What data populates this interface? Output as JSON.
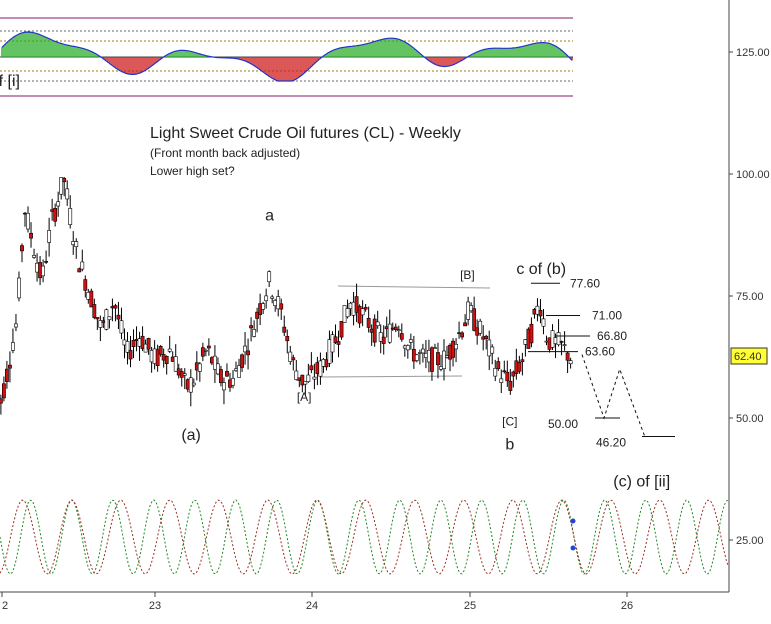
{
  "chart_data": {
    "type": "candlestick",
    "title": "Light Sweet Crude Oil futures (CL) - Weekly",
    "subtitle": "(Front month back adjusted)",
    "note": "Lower high set?",
    "x_ticks": [
      "2",
      "23",
      "24",
      "25",
      "26"
    ],
    "y_ticks": [
      125.0,
      100.0,
      75.0,
      50.0,
      25.0
    ],
    "y_tick_labels": [
      "125.00",
      "100.00",
      "75.00",
      "50.00",
      "25.00"
    ],
    "ylim": [
      17,
      138
    ],
    "last_price": "62.40",
    "wave_labels": [
      {
        "text": "(v) of [i]",
        "t": 21.97,
        "v": 118
      },
      {
        "text": "a",
        "t": 23.73,
        "v": 90.5
      },
      {
        "text": "(a)",
        "t": 23.23,
        "v": 45.5
      },
      {
        "text": "[A]",
        "t": 23.95,
        "v": 53.5
      },
      {
        "text": "[B]",
        "t": 24.99,
        "v": 78.5
      },
      {
        "text": "c of (b)",
        "t": 25.46,
        "v": 79.5
      },
      {
        "text": "[C]",
        "t": 25.26,
        "v": 48.5
      },
      {
        "text": "b",
        "t": 25.26,
        "v": 43.5
      },
      {
        "text": "(c) of [ii]",
        "t": 26.1,
        "v": 36.0
      }
    ],
    "targets": [
      {
        "label": "77.60",
        "v": 77.6
      },
      {
        "label": "71.00",
        "v": 71.0
      },
      {
        "label": "66.80",
        "v": 66.8
      },
      {
        "label": "63.60",
        "v": 63.6
      },
      {
        "label": "50.00",
        "v": 50.0
      },
      {
        "label": "46.20",
        "v": 46.2
      }
    ],
    "projection_path": [
      {
        "t": 25.72,
        "v": 63.0
      },
      {
        "t": 25.86,
        "v": 50.0
      },
      {
        "t": 25.96,
        "v": 60.0
      },
      {
        "t": 26.12,
        "v": 46.2
      }
    ],
    "colors": {
      "up_candle": "#ffffff",
      "down_candle": "#cc1111",
      "candle_outline": "#000000",
      "osc_positive": "#22aa22",
      "osc_negative": "#cc1111",
      "osc_line": "#2233cc",
      "band_line": "#8a1a6a",
      "cycle_green": "#228822",
      "cycle_brown": "#993322",
      "last_price_box": "#ffff33"
    }
  }
}
